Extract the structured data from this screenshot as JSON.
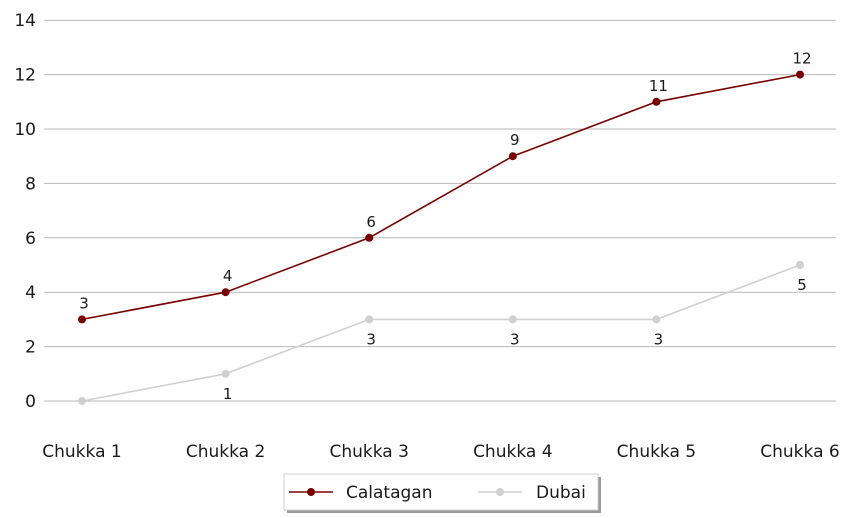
{
  "chart_data": {
    "type": "line",
    "title": "",
    "xlabel": "",
    "ylabel": "",
    "categories": [
      "Chukka 1",
      "Chukka 2",
      "Chukka 3",
      "Chukka 4",
      "Chukka 5",
      "Chukka 6"
    ],
    "ylim": [
      -1,
      14
    ],
    "yticks": [
      0,
      2,
      4,
      6,
      8,
      10,
      12,
      14
    ],
    "grid": true,
    "legend_position": "bottom-center",
    "series": [
      {
        "name": "Calatagan",
        "values": [
          3,
          4,
          6,
          9,
          11,
          12
        ],
        "color": "#7a0000",
        "label_position": "above"
      },
      {
        "name": "Dubai",
        "values": [
          0,
          1,
          3,
          3,
          3,
          5
        ],
        "color": "#d0d0d0",
        "label_position": "below",
        "labels_shown": [
          false,
          true,
          true,
          true,
          true,
          true
        ]
      }
    ]
  }
}
